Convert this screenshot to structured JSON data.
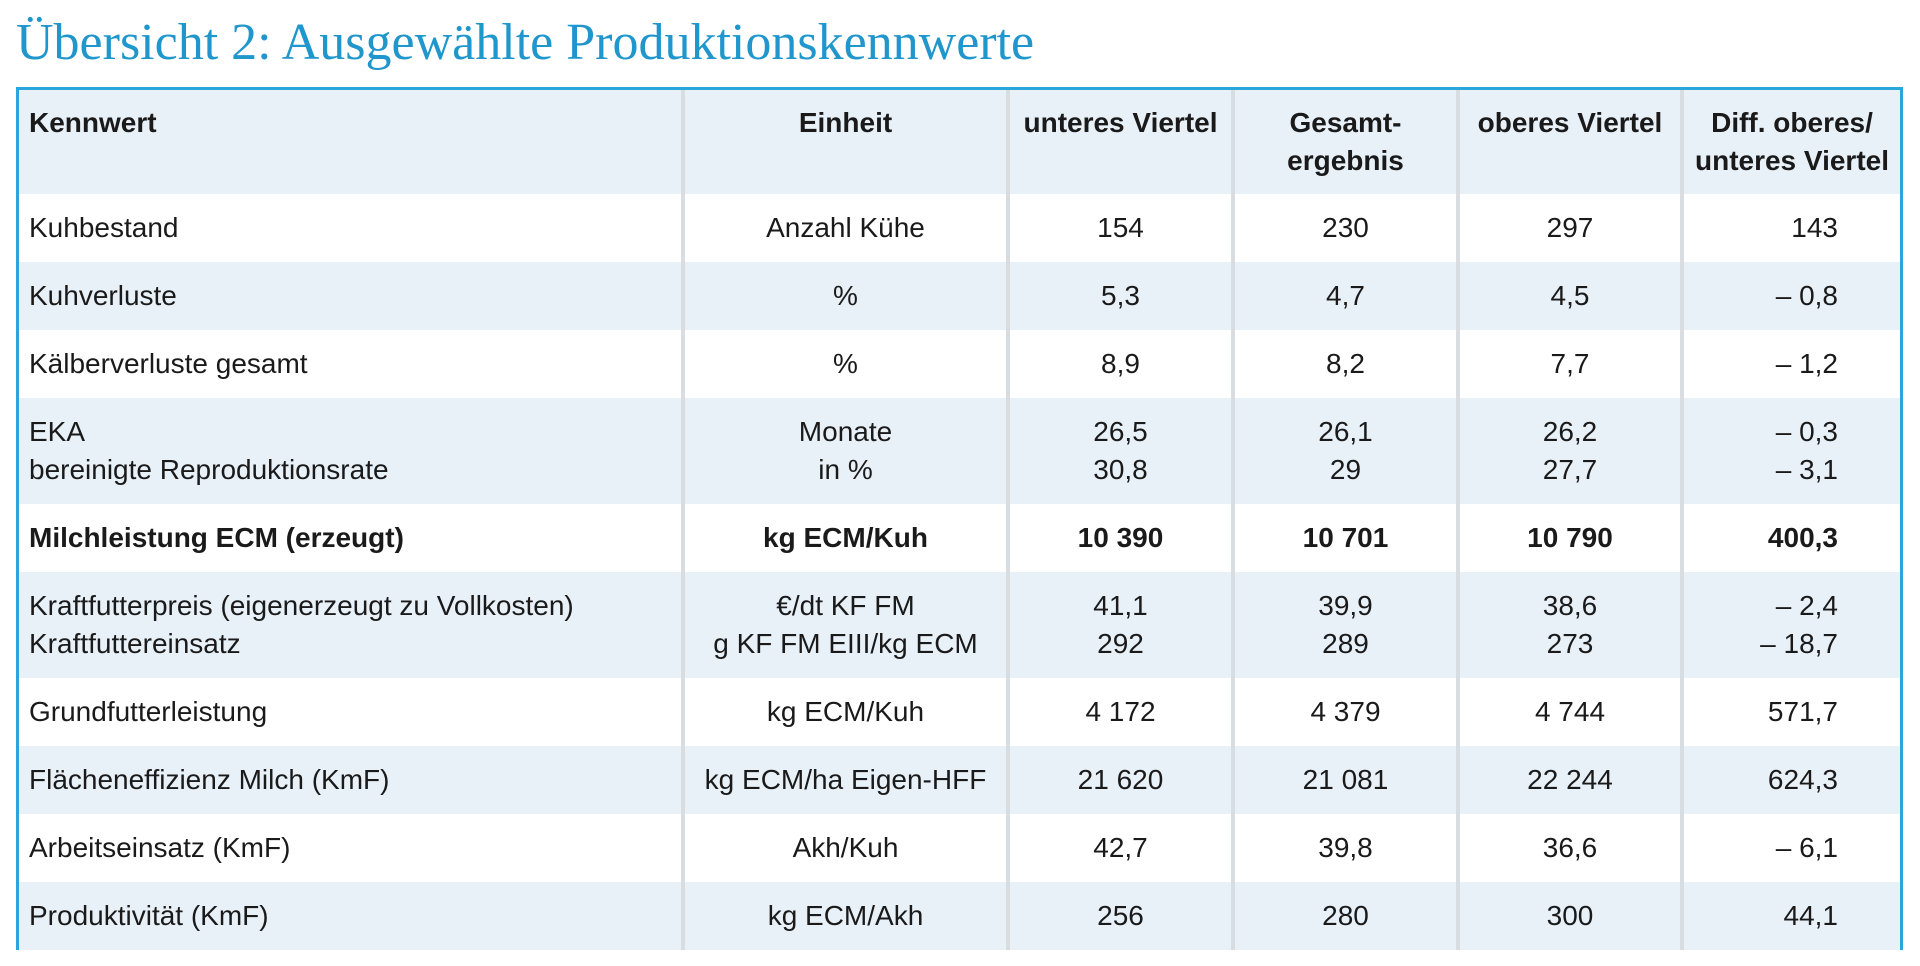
{
  "title": "Übersicht 2: Ausgewählte Produktionskennwerte",
  "table": {
    "headers": [
      [
        "Kennwert"
      ],
      [
        "Einheit"
      ],
      [
        "unteres Viertel"
      ],
      [
        "Gesamt-",
        "ergebnis"
      ],
      [
        "oberes Viertel"
      ],
      [
        "Diff. oberes/",
        "unteres Viertel"
      ]
    ],
    "rows": [
      {
        "label": [
          "Kuhbestand"
        ],
        "unit": [
          "Anzahl Kühe"
        ],
        "lower": [
          "154"
        ],
        "total": [
          "230"
        ],
        "upper": [
          "297"
        ],
        "diff": [
          "143"
        ]
      },
      {
        "label": [
          "Kuhverluste"
        ],
        "unit": [
          "%"
        ],
        "lower": [
          "5,3"
        ],
        "total": [
          "4,7"
        ],
        "upper": [
          "4,5"
        ],
        "diff": [
          "– 0,8"
        ]
      },
      {
        "label": [
          "Kälberverluste gesamt"
        ],
        "unit": [
          "%"
        ],
        "lower": [
          "8,9"
        ],
        "total": [
          "8,2"
        ],
        "upper": [
          "7,7"
        ],
        "diff": [
          "– 1,2"
        ]
      },
      {
        "label": [
          "EKA",
          "bereinigte Reproduktionsrate"
        ],
        "unit": [
          "Monate",
          "in %"
        ],
        "lower": [
          "26,5",
          "30,8"
        ],
        "total": [
          "26,1",
          "29"
        ],
        "upper": [
          "26,2",
          "27,7"
        ],
        "diff": [
          "– 0,3",
          "– 3,1"
        ]
      },
      {
        "label": [
          "Milchleistung ECM (erzeugt)"
        ],
        "unit": [
          "kg ECM/Kuh"
        ],
        "lower": [
          "10 390"
        ],
        "total": [
          "10 701"
        ],
        "upper": [
          "10 790"
        ],
        "diff": [
          "400,3"
        ]
      },
      {
        "label": [
          "Kraftfutterpreis (eigenerzeugt zu Vollkosten)",
          "Kraftfuttereinsatz"
        ],
        "unit": [
          "€/dt KF FM",
          "g KF FM EIII/kg ECM"
        ],
        "lower": [
          "41,1",
          "292"
        ],
        "total": [
          "39,9",
          "289"
        ],
        "upper": [
          "38,6",
          "273"
        ],
        "diff": [
          "– 2,4",
          "– 18,7"
        ]
      },
      {
        "label": [
          "Grundfutterleistung"
        ],
        "unit": [
          "kg ECM/Kuh"
        ],
        "lower": [
          "4 172"
        ],
        "total": [
          "4 379"
        ],
        "upper": [
          "4 744"
        ],
        "diff": [
          "571,7"
        ]
      },
      {
        "label": [
          "Flächeneffizienz Milch (KmF)"
        ],
        "unit": [
          "kg ECM/ha Eigen-HFF"
        ],
        "lower": [
          "21 620"
        ],
        "total": [
          "21 081"
        ],
        "upper": [
          "22 244"
        ],
        "diff": [
          "624,3"
        ]
      },
      {
        "label": [
          "Arbeitseinsatz (KmF)"
        ],
        "unit": [
          "Akh/Kuh"
        ],
        "lower": [
          "42,7"
        ],
        "total": [
          "39,8"
        ],
        "upper": [
          "36,6"
        ],
        "diff": [
          "– 6,1"
        ]
      },
      {
        "label": [
          "Produktivität (KmF)"
        ],
        "unit": [
          "kg ECM/Akh"
        ],
        "lower": [
          "256"
        ],
        "total": [
          "280"
        ],
        "upper": [
          "300"
        ],
        "diff": [
          "44,1"
        ]
      }
    ]
  },
  "colors": {
    "title": "#1f96cc",
    "border": "#2aa6da",
    "band": "#e8f0f8"
  }
}
